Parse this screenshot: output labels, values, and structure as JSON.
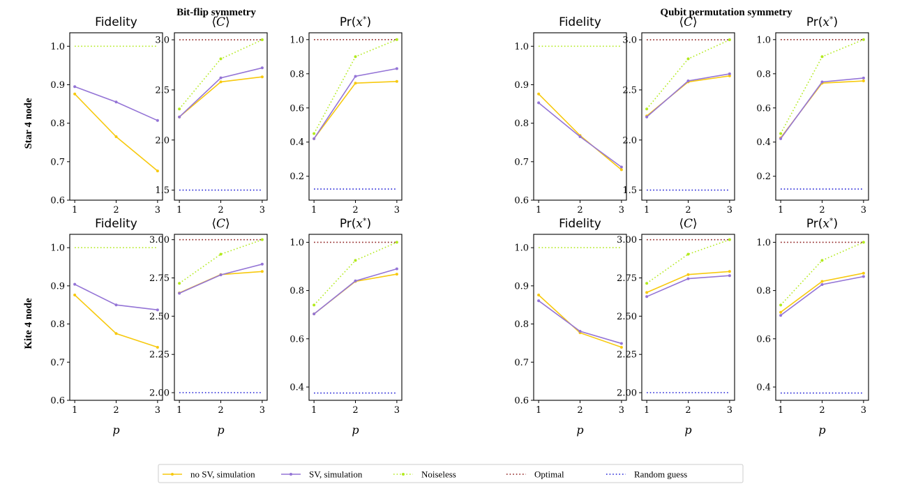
{
  "groups": [
    {
      "title": "Bit-flip symmetry"
    },
    {
      "title": "Qubit permutation symmetry"
    }
  ],
  "row_labels": [
    "Star 4 node",
    "Kite 4 node"
  ],
  "panel_titles": {
    "fidelity": "Fidelity",
    "cost": "⟨C⟩",
    "prob": "Pr(x*)"
  },
  "xlabel": "p",
  "legend": [
    {
      "key": "nosv",
      "label": "no SV, simulation",
      "color": "#f7c90e",
      "style": "solid",
      "marker": true
    },
    {
      "key": "sv",
      "label": "SV, simulation",
      "color": "#9474d6",
      "style": "solid",
      "marker": true
    },
    {
      "key": "noiseless",
      "label": "Noiseless",
      "color": "#b3ea1e",
      "style": "dotted",
      "marker": true
    },
    {
      "key": "optimal",
      "label": "Optimal",
      "color": "#8b1a1a",
      "style": "dotted",
      "marker": false
    },
    {
      "key": "random",
      "label": "Random guess",
      "color": "#1f1fd6",
      "style": "dotted",
      "marker": false
    }
  ],
  "chart_data": [
    {
      "type": "line",
      "group": "Bit-flip symmetry",
      "row": "Star 4 node",
      "panel": "Fidelity",
      "x": [
        1,
        2,
        3
      ],
      "ylim": [
        0.6,
        1.035
      ],
      "yticks": [
        "0.6",
        "0.7",
        "0.8",
        "0.9",
        "1.0"
      ],
      "series": [
        {
          "key": "nosv",
          "values": [
            0.876,
            0.765,
            0.676
          ]
        },
        {
          "key": "sv",
          "values": [
            0.895,
            0.855,
            0.807
          ]
        },
        {
          "key": "noiseless",
          "values": [
            1.0,
            1.0,
            1.0
          ],
          "nomarker": true
        }
      ]
    },
    {
      "type": "line",
      "group": "Bit-flip symmetry",
      "row": "Star 4 node",
      "panel": "⟨C⟩",
      "x": [
        1,
        2,
        3
      ],
      "ylim": [
        1.4,
        3.07
      ],
      "yticks": [
        "1.5",
        "2.0",
        "2.5",
        "3.0"
      ],
      "series": [
        {
          "key": "noiseless",
          "values": [
            2.31,
            2.81,
            3.0
          ]
        },
        {
          "key": "nosv",
          "values": [
            2.23,
            2.58,
            2.63
          ]
        },
        {
          "key": "sv",
          "values": [
            2.23,
            2.62,
            2.72
          ]
        },
        {
          "key": "optimal",
          "values": [
            3.0,
            3.0,
            3.0
          ]
        },
        {
          "key": "random",
          "values": [
            1.5,
            1.5,
            1.5
          ]
        }
      ]
    },
    {
      "type": "line",
      "group": "Bit-flip symmetry",
      "row": "Star 4 node",
      "panel": "Pr(x*)",
      "x": [
        1,
        2,
        3
      ],
      "ylim": [
        0.06,
        1.04
      ],
      "yticks": [
        "0.2",
        "0.4",
        "0.6",
        "0.8",
        "1.0"
      ],
      "series": [
        {
          "key": "noiseless",
          "values": [
            0.45,
            0.9,
            1.0
          ]
        },
        {
          "key": "nosv",
          "values": [
            0.42,
            0.745,
            0.755
          ]
        },
        {
          "key": "sv",
          "values": [
            0.42,
            0.785,
            0.83
          ]
        },
        {
          "key": "optimal",
          "values": [
            1.0,
            1.0,
            1.0
          ]
        },
        {
          "key": "random",
          "values": [
            0.125,
            0.125,
            0.125
          ]
        }
      ]
    },
    {
      "type": "line",
      "group": "Qubit permutation symmetry",
      "row": "Star 4 node",
      "panel": "Fidelity",
      "x": [
        1,
        2,
        3
      ],
      "ylim": [
        0.6,
        1.035
      ],
      "yticks": [
        "0.6",
        "0.7",
        "0.8",
        "0.9",
        "1.0"
      ],
      "series": [
        {
          "key": "nosv",
          "values": [
            0.876,
            0.768,
            0.679
          ]
        },
        {
          "key": "sv",
          "values": [
            0.853,
            0.765,
            0.686
          ]
        },
        {
          "key": "noiseless",
          "values": [
            1.0,
            1.0,
            1.0
          ],
          "nomarker": true
        }
      ]
    },
    {
      "type": "line",
      "group": "Qubit permutation symmetry",
      "row": "Star 4 node",
      "panel": "⟨C⟩",
      "x": [
        1,
        2,
        3
      ],
      "ylim": [
        1.4,
        3.07
      ],
      "yticks": [
        "1.5",
        "2.0",
        "2.5",
        "3.0"
      ],
      "series": [
        {
          "key": "noiseless",
          "values": [
            2.31,
            2.81,
            3.0
          ]
        },
        {
          "key": "nosv",
          "values": [
            2.24,
            2.58,
            2.64
          ]
        },
        {
          "key": "sv",
          "values": [
            2.23,
            2.59,
            2.66
          ]
        },
        {
          "key": "optimal",
          "values": [
            3.0,
            3.0,
            3.0
          ]
        },
        {
          "key": "random",
          "values": [
            1.5,
            1.5,
            1.5
          ]
        }
      ]
    },
    {
      "type": "line",
      "group": "Qubit permutation symmetry",
      "row": "Star 4 node",
      "panel": "Pr(x*)",
      "x": [
        1,
        2,
        3
      ],
      "ylim": [
        0.06,
        1.04
      ],
      "yticks": [
        "0.2",
        "0.4",
        "0.6",
        "0.8",
        "1.0"
      ],
      "series": [
        {
          "key": "noiseless",
          "values": [
            0.45,
            0.9,
            1.0
          ]
        },
        {
          "key": "nosv",
          "values": [
            0.425,
            0.745,
            0.758
          ]
        },
        {
          "key": "sv",
          "values": [
            0.42,
            0.752,
            0.775
          ]
        },
        {
          "key": "optimal",
          "values": [
            1.0,
            1.0,
            1.0
          ]
        },
        {
          "key": "random",
          "values": [
            0.125,
            0.125,
            0.125
          ]
        }
      ]
    },
    {
      "type": "line",
      "group": "Bit-flip symmetry",
      "row": "Kite 4 node",
      "panel": "Fidelity",
      "x": [
        1,
        2,
        3
      ],
      "ylim": [
        0.6,
        1.035
      ],
      "yticks": [
        "0.6",
        "0.7",
        "0.8",
        "0.9",
        "1.0"
      ],
      "series": [
        {
          "key": "nosv",
          "values": [
            0.876,
            0.775,
            0.739
          ]
        },
        {
          "key": "sv",
          "values": [
            0.904,
            0.85,
            0.837
          ]
        },
        {
          "key": "noiseless",
          "values": [
            1.0,
            1.0,
            1.0
          ],
          "nomarker": true
        }
      ]
    },
    {
      "type": "line",
      "group": "Bit-flip symmetry",
      "row": "Kite 4 node",
      "panel": "⟨C⟩",
      "x": [
        1,
        2,
        3
      ],
      "ylim": [
        1.95,
        3.035
      ],
      "yticks": [
        "2.00",
        "2.25",
        "2.50",
        "2.75",
        "3.00"
      ],
      "series": [
        {
          "key": "noiseless",
          "values": [
            2.715,
            2.905,
            3.0
          ]
        },
        {
          "key": "nosv",
          "values": [
            2.652,
            2.772,
            2.792
          ]
        },
        {
          "key": "sv",
          "values": [
            2.65,
            2.77,
            2.84
          ]
        },
        {
          "key": "optimal",
          "values": [
            3.0,
            3.0,
            3.0
          ]
        },
        {
          "key": "random",
          "values": [
            2.0,
            2.0,
            2.0
          ]
        }
      ]
    },
    {
      "type": "line",
      "group": "Bit-flip symmetry",
      "row": "Kite 4 node",
      "panel": "Pr(x*)",
      "x": [
        1,
        2,
        3
      ],
      "ylim": [
        0.345,
        1.033
      ],
      "yticks": [
        "0.4",
        "0.6",
        "0.8",
        "1.0"
      ],
      "series": [
        {
          "key": "noiseless",
          "values": [
            0.74,
            0.925,
            1.0
          ]
        },
        {
          "key": "nosv",
          "values": [
            0.703,
            0.838,
            0.868
          ]
        },
        {
          "key": "sv",
          "values": [
            0.703,
            0.84,
            0.89
          ]
        },
        {
          "key": "optimal",
          "values": [
            1.0,
            1.0,
            1.0
          ]
        },
        {
          "key": "random",
          "values": [
            0.375,
            0.375,
            0.375
          ]
        }
      ]
    },
    {
      "type": "line",
      "group": "Qubit permutation symmetry",
      "row": "Kite 4 node",
      "panel": "Fidelity",
      "x": [
        1,
        2,
        3
      ],
      "ylim": [
        0.6,
        1.035
      ],
      "yticks": [
        "0.6",
        "0.7",
        "0.8",
        "0.9",
        "1.0"
      ],
      "series": [
        {
          "key": "nosv",
          "values": [
            0.876,
            0.777,
            0.739
          ]
        },
        {
          "key": "sv",
          "values": [
            0.861,
            0.781,
            0.749
          ]
        },
        {
          "key": "noiseless",
          "values": [
            1.0,
            1.0,
            1.0
          ],
          "nomarker": true
        }
      ]
    },
    {
      "type": "line",
      "group": "Qubit permutation symmetry",
      "row": "Kite 4 node",
      "panel": "⟨C⟩",
      "x": [
        1,
        2,
        3
      ],
      "ylim": [
        1.95,
        3.035
      ],
      "yticks": [
        "2.00",
        "2.25",
        "2.50",
        "2.75",
        "3.00"
      ],
      "series": [
        {
          "key": "noiseless",
          "values": [
            2.715,
            2.905,
            3.0
          ]
        },
        {
          "key": "nosv",
          "values": [
            2.655,
            2.772,
            2.792
          ]
        },
        {
          "key": "sv",
          "values": [
            2.628,
            2.745,
            2.765
          ]
        },
        {
          "key": "optimal",
          "values": [
            3.0,
            3.0,
            3.0
          ]
        },
        {
          "key": "random",
          "values": [
            2.0,
            2.0,
            2.0
          ]
        }
      ]
    },
    {
      "type": "line",
      "group": "Qubit permutation symmetry",
      "row": "Kite 4 node",
      "panel": "Pr(x*)",
      "x": [
        1,
        2,
        3
      ],
      "ylim": [
        0.345,
        1.033
      ],
      "yticks": [
        "0.4",
        "0.6",
        "0.8",
        "1.0"
      ],
      "series": [
        {
          "key": "noiseless",
          "values": [
            0.74,
            0.925,
            1.0
          ]
        },
        {
          "key": "nosv",
          "values": [
            0.71,
            0.838,
            0.872
          ]
        },
        {
          "key": "sv",
          "values": [
            0.697,
            0.825,
            0.858
          ]
        },
        {
          "key": "optimal",
          "values": [
            1.0,
            1.0,
            1.0
          ]
        },
        {
          "key": "random",
          "values": [
            0.375,
            0.375,
            0.375
          ]
        }
      ]
    }
  ]
}
